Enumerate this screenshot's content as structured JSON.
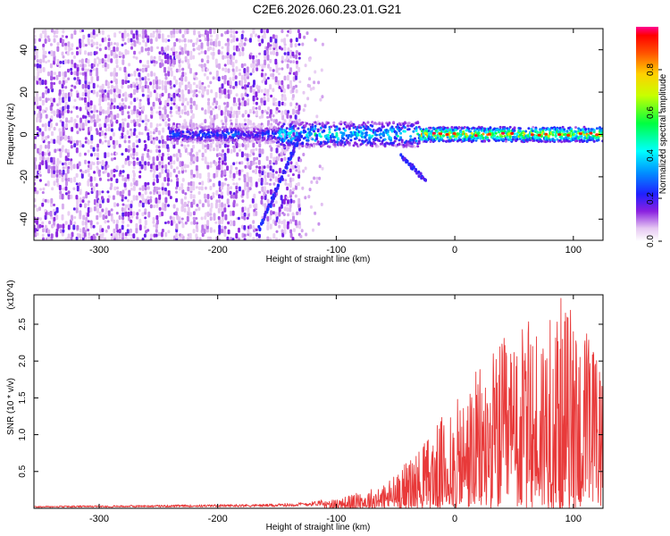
{
  "title": "C2E6.2026.060.23.01.G21",
  "chart_data": [
    {
      "type": "heatmap",
      "xlabel": "Height of straight line (km)",
      "ylabel": "Frequency (Hz)",
      "xlim": [
        -355,
        125
      ],
      "ylim": [
        -50,
        50
      ],
      "x_ticks": [
        -300,
        -200,
        -100,
        0,
        100
      ],
      "y_ticks": [
        -40,
        -20,
        0,
        20,
        40
      ],
      "colorbar": {
        "label": "Normalized spectral amplitude",
        "range": [
          0.0,
          1.0
        ],
        "ticks": [
          0.0,
          0.2,
          0.4,
          0.6,
          0.8
        ],
        "colormap": "rainbow (violet to red)"
      },
      "features": {
        "noise_region_x": [
          -355,
          -130
        ],
        "trace_center_hz": 0,
        "trace_onset_x": -240,
        "descending_trace_start": [
          -130,
          0
        ],
        "descending_trace_end": [
          -165,
          -45
        ],
        "secondary_trace_start": [
          -45,
          -10
        ],
        "secondary_trace_end": [
          -25,
          -22
        ],
        "peak_amplitude_region_x": [
          -20,
          125
        ]
      }
    },
    {
      "type": "line",
      "xlabel": "Height of straight line (km)",
      "ylabel": "SNR (10 * v/v)",
      "y_multiplier": "(x10^4)",
      "xlim": [
        -355,
        125
      ],
      "ylim": [
        0,
        2.9
      ],
      "x_ticks": [
        -300,
        -200,
        -100,
        0,
        100
      ],
      "y_ticks": [
        0.5,
        1.0,
        1.5,
        2.0,
        2.5
      ],
      "color": "#e83a3a",
      "envelope": {
        "x": [
          -355,
          -250,
          -150,
          -120,
          -100,
          -80,
          -60,
          -50,
          -40,
          -30,
          -20,
          -10,
          0,
          10,
          20,
          30,
          40,
          50,
          60,
          70,
          80,
          90,
          100,
          110,
          120,
          125
        ],
        "y": [
          0.02,
          0.03,
          0.04,
          0.06,
          0.12,
          0.2,
          0.3,
          0.45,
          0.6,
          0.75,
          0.95,
          1.15,
          1.3,
          1.5,
          1.75,
          1.95,
          2.1,
          2.2,
          2.3,
          2.4,
          2.5,
          2.6,
          2.5,
          2.3,
          2.0,
          1.8
        ]
      }
    }
  ]
}
